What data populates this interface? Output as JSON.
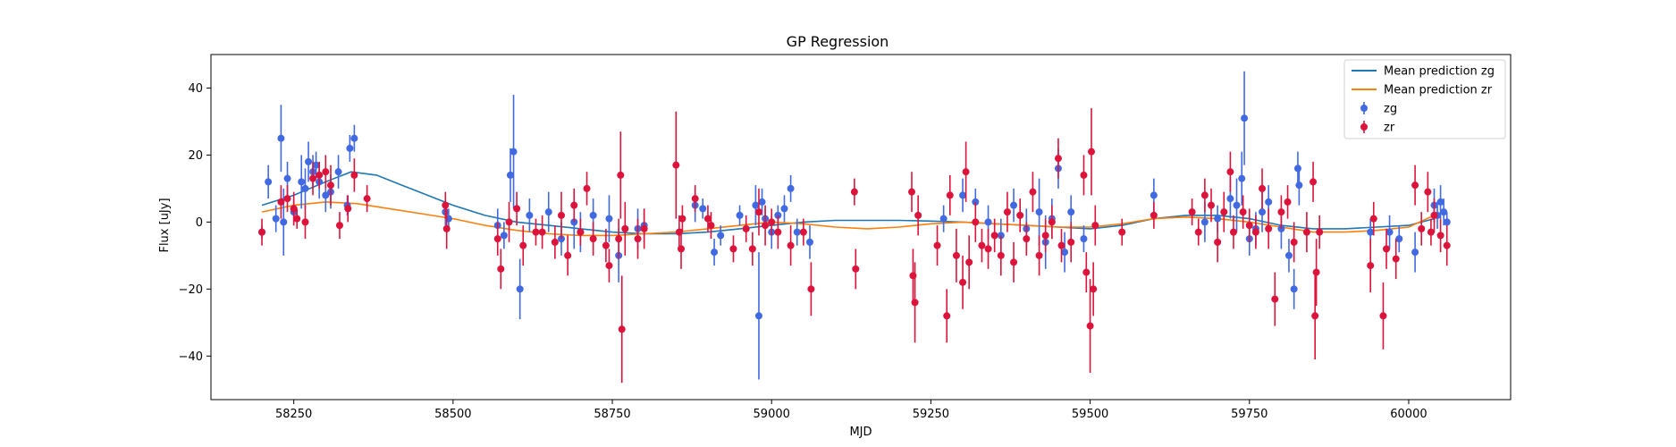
{
  "chart_data": {
    "type": "scatter",
    "title": "GP Regression",
    "xlabel": "MJD",
    "ylabel": "Flux [uJy]",
    "xlim": [
      58120,
      60160
    ],
    "ylim": [
      -53,
      50
    ],
    "xticks": [
      58250,
      58500,
      58750,
      59000,
      59250,
      59500,
      59750,
      60000
    ],
    "yticks": [
      -40,
      -20,
      0,
      20,
      40
    ],
    "legend_position": "top-right",
    "colors": {
      "zg_line": "#1f77b4",
      "zr_line": "#ff7f0e",
      "zg_points": "#4169e1",
      "zr_points": "#dc143c"
    },
    "series": [
      {
        "name": "Mean prediction zg",
        "kind": "line",
        "x": [
          58200,
          58250,
          58300,
          58340,
          58380,
          58420,
          58460,
          58500,
          58550,
          58600,
          58650,
          58700,
          58750,
          58800,
          58850,
          58900,
          58950,
          59000,
          59050,
          59100,
          59150,
          59200,
          59250,
          59300,
          59350,
          59400,
          59450,
          59500,
          59550,
          59600,
          59650,
          59700,
          59750,
          59800,
          59850,
          59900,
          59950,
          60000,
          60040
        ],
        "y": [
          5,
          8,
          12,
          15,
          14,
          11,
          8,
          5,
          2,
          0,
          -1,
          -2,
          -3,
          -3.5,
          -3.5,
          -3,
          -2,
          -1,
          0,
          0.5,
          0.5,
          0.5,
          0.3,
          0,
          -0.5,
          -1,
          -1.5,
          -2,
          -1,
          1,
          2,
          2,
          1,
          -1,
          -2,
          -2,
          -1.5,
          -1,
          1
        ]
      },
      {
        "name": "Mean prediction zr",
        "kind": "line",
        "x": [
          58200,
          58250,
          58300,
          58350,
          58400,
          58450,
          58500,
          58550,
          58600,
          58650,
          58700,
          58750,
          58800,
          58850,
          58900,
          58950,
          59000,
          59050,
          59100,
          59150,
          59200,
          59250,
          59300,
          59350,
          59400,
          59450,
          59500,
          59550,
          59600,
          59650,
          59700,
          59750,
          59800,
          59850,
          59900,
          59950,
          60000,
          60040
        ],
        "y": [
          3,
          5,
          6,
          5.5,
          4,
          2.5,
          1,
          -1,
          -2.5,
          -3.5,
          -4,
          -4,
          -3.5,
          -3,
          -2,
          -1,
          0,
          -0.5,
          -1.5,
          -2,
          -1.5,
          -0.5,
          0,
          -0.5,
          -1,
          -1.5,
          -1.5,
          -0.5,
          1,
          1.5,
          1,
          0,
          -1.5,
          -3,
          -3,
          -2.5,
          -1.5,
          2
        ]
      },
      {
        "name": "zg",
        "kind": "errorbar",
        "points": [
          [
            58200,
            -3,
            2
          ],
          [
            58210,
            12,
            5
          ],
          [
            58222,
            1,
            4
          ],
          [
            58230,
            25,
            10
          ],
          [
            58234,
            0,
            10
          ],
          [
            58240,
            13,
            5
          ],
          [
            58250,
            3,
            4
          ],
          [
            58262,
            12,
            8
          ],
          [
            58268,
            10,
            6
          ],
          [
            58273,
            18,
            6
          ],
          [
            58280,
            15,
            5
          ],
          [
            58285,
            17,
            4
          ],
          [
            58290,
            12,
            5
          ],
          [
            58300,
            8,
            5
          ],
          [
            58308,
            9,
            5
          ],
          [
            58320,
            15,
            5
          ],
          [
            58334,
            5,
            3
          ],
          [
            58338,
            22,
            4
          ],
          [
            58345,
            25,
            4
          ],
          [
            58488,
            3,
            4
          ],
          [
            58493,
            1,
            3
          ],
          [
            58570,
            -1,
            5
          ],
          [
            58580,
            -4,
            4
          ],
          [
            58590,
            14,
            8
          ],
          [
            58595,
            21,
            17
          ],
          [
            58605,
            -20,
            9
          ],
          [
            58620,
            2,
            5
          ],
          [
            58650,
            3,
            6
          ],
          [
            58670,
            -5,
            5
          ],
          [
            58690,
            0,
            8
          ],
          [
            58700,
            -3,
            6
          ],
          [
            58720,
            2,
            5
          ],
          [
            58745,
            1,
            7
          ],
          [
            58760,
            -10,
            8
          ],
          [
            58790,
            -2,
            6
          ],
          [
            58800,
            -1,
            5
          ],
          [
            58880,
            5,
            5
          ],
          [
            58892,
            4,
            3
          ],
          [
            58910,
            -9,
            4
          ],
          [
            58920,
            -4,
            3
          ],
          [
            58950,
            2,
            3
          ],
          [
            58975,
            5,
            6
          ],
          [
            58980,
            -28,
            19
          ],
          [
            58985,
            6,
            4
          ],
          [
            58990,
            1,
            3
          ],
          [
            59000,
            -3,
            5
          ],
          [
            59010,
            2,
            3
          ],
          [
            59020,
            4,
            4
          ],
          [
            59030,
            10,
            4
          ],
          [
            59040,
            -3,
            4
          ],
          [
            59060,
            -6,
            5
          ],
          [
            59270,
            1,
            4
          ],
          [
            59300,
            8,
            5
          ],
          [
            59320,
            6,
            4
          ],
          [
            59340,
            0,
            5
          ],
          [
            59360,
            -4,
            5
          ],
          [
            59380,
            5,
            5
          ],
          [
            59400,
            -2,
            6
          ],
          [
            59420,
            3,
            10
          ],
          [
            59430,
            -6,
            8
          ],
          [
            59440,
            1,
            6
          ],
          [
            59450,
            16,
            6
          ],
          [
            59460,
            -9,
            6
          ],
          [
            59470,
            3,
            5
          ],
          [
            59490,
            -5,
            4
          ],
          [
            59600,
            8,
            5
          ],
          [
            59680,
            0,
            6
          ],
          [
            59700,
            1,
            4
          ],
          [
            59720,
            7,
            6
          ],
          [
            59730,
            5,
            8
          ],
          [
            59738,
            13,
            8
          ],
          [
            59742,
            31,
            14
          ],
          [
            59750,
            -5,
            5
          ],
          [
            59760,
            -2,
            5
          ],
          [
            59770,
            3,
            6
          ],
          [
            59780,
            6,
            5
          ],
          [
            59800,
            -2,
            6
          ],
          [
            59812,
            -10,
            5
          ],
          [
            59820,
            -20,
            6
          ],
          [
            59826,
            16,
            5
          ],
          [
            59828,
            11,
            6
          ],
          [
            59940,
            -3,
            4
          ],
          [
            59970,
            -3,
            5
          ],
          [
            59985,
            -5,
            4
          ],
          [
            60010,
            -9,
            6
          ],
          [
            60040,
            5,
            5
          ],
          [
            60045,
            2,
            4
          ],
          [
            60050,
            6,
            5
          ],
          [
            60055,
            3,
            4
          ],
          [
            60060,
            0,
            3
          ]
        ]
      },
      {
        "name": "zr",
        "kind": "errorbar",
        "points": [
          [
            58200,
            -3,
            4
          ],
          [
            58230,
            6,
            5
          ],
          [
            58240,
            7,
            4
          ],
          [
            58250,
            4,
            5
          ],
          [
            58255,
            1,
            3
          ],
          [
            58268,
            0,
            5
          ],
          [
            58280,
            13,
            5
          ],
          [
            58290,
            14,
            4
          ],
          [
            58300,
            15,
            5
          ],
          [
            58308,
            11,
            6
          ],
          [
            58322,
            -1,
            4
          ],
          [
            58335,
            4,
            4
          ],
          [
            58345,
            14,
            5
          ],
          [
            58365,
            7,
            4
          ],
          [
            58488,
            5,
            4
          ],
          [
            58490,
            -2,
            6
          ],
          [
            58570,
            -5,
            5
          ],
          [
            58575,
            -14,
            6
          ],
          [
            58588,
            0,
            6
          ],
          [
            58600,
            4,
            5
          ],
          [
            58610,
            -7,
            6
          ],
          [
            58630,
            -3,
            4
          ],
          [
            58640,
            -3,
            5
          ],
          [
            58660,
            -6,
            5
          ],
          [
            58670,
            2,
            7
          ],
          [
            58680,
            -10,
            6
          ],
          [
            58690,
            5,
            5
          ],
          [
            58700,
            -3,
            4
          ],
          [
            58710,
            10,
            5
          ],
          [
            58720,
            -5,
            5
          ],
          [
            58740,
            -7,
            5
          ],
          [
            58745,
            -13,
            5
          ],
          [
            58760,
            -5,
            6
          ],
          [
            58763,
            14,
            13
          ],
          [
            58765,
            -32,
            16
          ],
          [
            58770,
            -2,
            8
          ],
          [
            58790,
            -5,
            6
          ],
          [
            58800,
            -2,
            6
          ],
          [
            58850,
            17,
            16
          ],
          [
            58855,
            -3,
            5
          ],
          [
            58858,
            -8,
            6
          ],
          [
            58860,
            1,
            4
          ],
          [
            58880,
            7,
            4
          ],
          [
            58900,
            1,
            4
          ],
          [
            58905,
            -1,
            4
          ],
          [
            58940,
            -8,
            4
          ],
          [
            58960,
            -2,
            4
          ],
          [
            58970,
            -8,
            5
          ],
          [
            58980,
            3,
            7
          ],
          [
            58990,
            -1,
            6
          ],
          [
            59000,
            0,
            4
          ],
          [
            59010,
            -3,
            5
          ],
          [
            59030,
            -7,
            6
          ],
          [
            59050,
            -3,
            4
          ],
          [
            59062,
            -20,
            8
          ],
          [
            59130,
            9,
            4
          ],
          [
            59132,
            -14,
            6
          ],
          [
            59220,
            9,
            6
          ],
          [
            59222,
            -16,
            8
          ],
          [
            59225,
            -24,
            12
          ],
          [
            59230,
            2,
            6
          ],
          [
            59260,
            -7,
            6
          ],
          [
            59275,
            -28,
            8
          ],
          [
            59280,
            8,
            6
          ],
          [
            59290,
            -10,
            8
          ],
          [
            59300,
            -18,
            8
          ],
          [
            59305,
            15,
            9
          ],
          [
            59310,
            -12,
            8
          ],
          [
            59320,
            0,
            6
          ],
          [
            59330,
            -7,
            5
          ],
          [
            59340,
            -8,
            6
          ],
          [
            59350,
            -4,
            5
          ],
          [
            59360,
            -10,
            6
          ],
          [
            59370,
            3,
            6
          ],
          [
            59380,
            -12,
            6
          ],
          [
            59390,
            2,
            5
          ],
          [
            59400,
            -5,
            5
          ],
          [
            59410,
            9,
            6
          ],
          [
            59420,
            -10,
            6
          ],
          [
            59430,
            -4,
            5
          ],
          [
            59440,
            0,
            5
          ],
          [
            59450,
            19,
            6
          ],
          [
            59455,
            -7,
            5
          ],
          [
            59470,
            -6,
            6
          ],
          [
            59490,
            14,
            6
          ],
          [
            59494,
            -15,
            6
          ],
          [
            59500,
            -31,
            14
          ],
          [
            59502,
            21,
            13
          ],
          [
            59505,
            -20,
            8
          ],
          [
            59508,
            -1,
            6
          ],
          [
            59550,
            -3,
            4
          ],
          [
            59600,
            2,
            4
          ],
          [
            59660,
            3,
            4
          ],
          [
            59670,
            -3,
            4
          ],
          [
            59680,
            8,
            5
          ],
          [
            59690,
            5,
            5
          ],
          [
            59700,
            -6,
            6
          ],
          [
            59710,
            3,
            6
          ],
          [
            59720,
            15,
            6
          ],
          [
            59725,
            -3,
            5
          ],
          [
            59740,
            3,
            5
          ],
          [
            59750,
            -1,
            5
          ],
          [
            59760,
            -3,
            5
          ],
          [
            59770,
            10,
            6
          ],
          [
            59780,
            -2,
            6
          ],
          [
            59790,
            -23,
            8
          ],
          [
            59800,
            3,
            5
          ],
          [
            59810,
            6,
            5
          ],
          [
            59820,
            -6,
            6
          ],
          [
            59840,
            -3,
            6
          ],
          [
            59850,
            12,
            6
          ],
          [
            59853,
            -28,
            13
          ],
          [
            59855,
            -15,
            10
          ],
          [
            59860,
            -3,
            5
          ],
          [
            59940,
            -13,
            8
          ],
          [
            59945,
            1,
            5
          ],
          [
            59960,
            -28,
            10
          ],
          [
            59965,
            -8,
            6
          ],
          [
            59980,
            -11,
            6
          ],
          [
            60010,
            11,
            6
          ],
          [
            60020,
            -2,
            5
          ],
          [
            60030,
            9,
            6
          ],
          [
            60035,
            -3,
            4
          ],
          [
            60040,
            2,
            5
          ],
          [
            60050,
            -4,
            5
          ],
          [
            60060,
            -7,
            6
          ]
        ]
      }
    ]
  }
}
